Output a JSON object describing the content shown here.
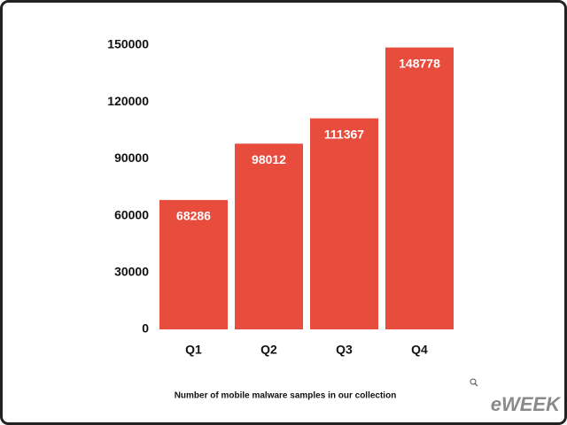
{
  "chart_data": {
    "type": "bar",
    "title": "Number of mobile malware samples in our collection",
    "categories": [
      "Q1",
      "Q2",
      "Q3",
      "Q4"
    ],
    "values": [
      68286,
      98012,
      111367,
      148778
    ],
    "color": "#e84c3d",
    "ylim": [
      0,
      150000
    ],
    "yticks": [
      0,
      30000,
      60000,
      90000,
      120000,
      150000
    ],
    "grid": false
  },
  "watermark": "eWEEK"
}
